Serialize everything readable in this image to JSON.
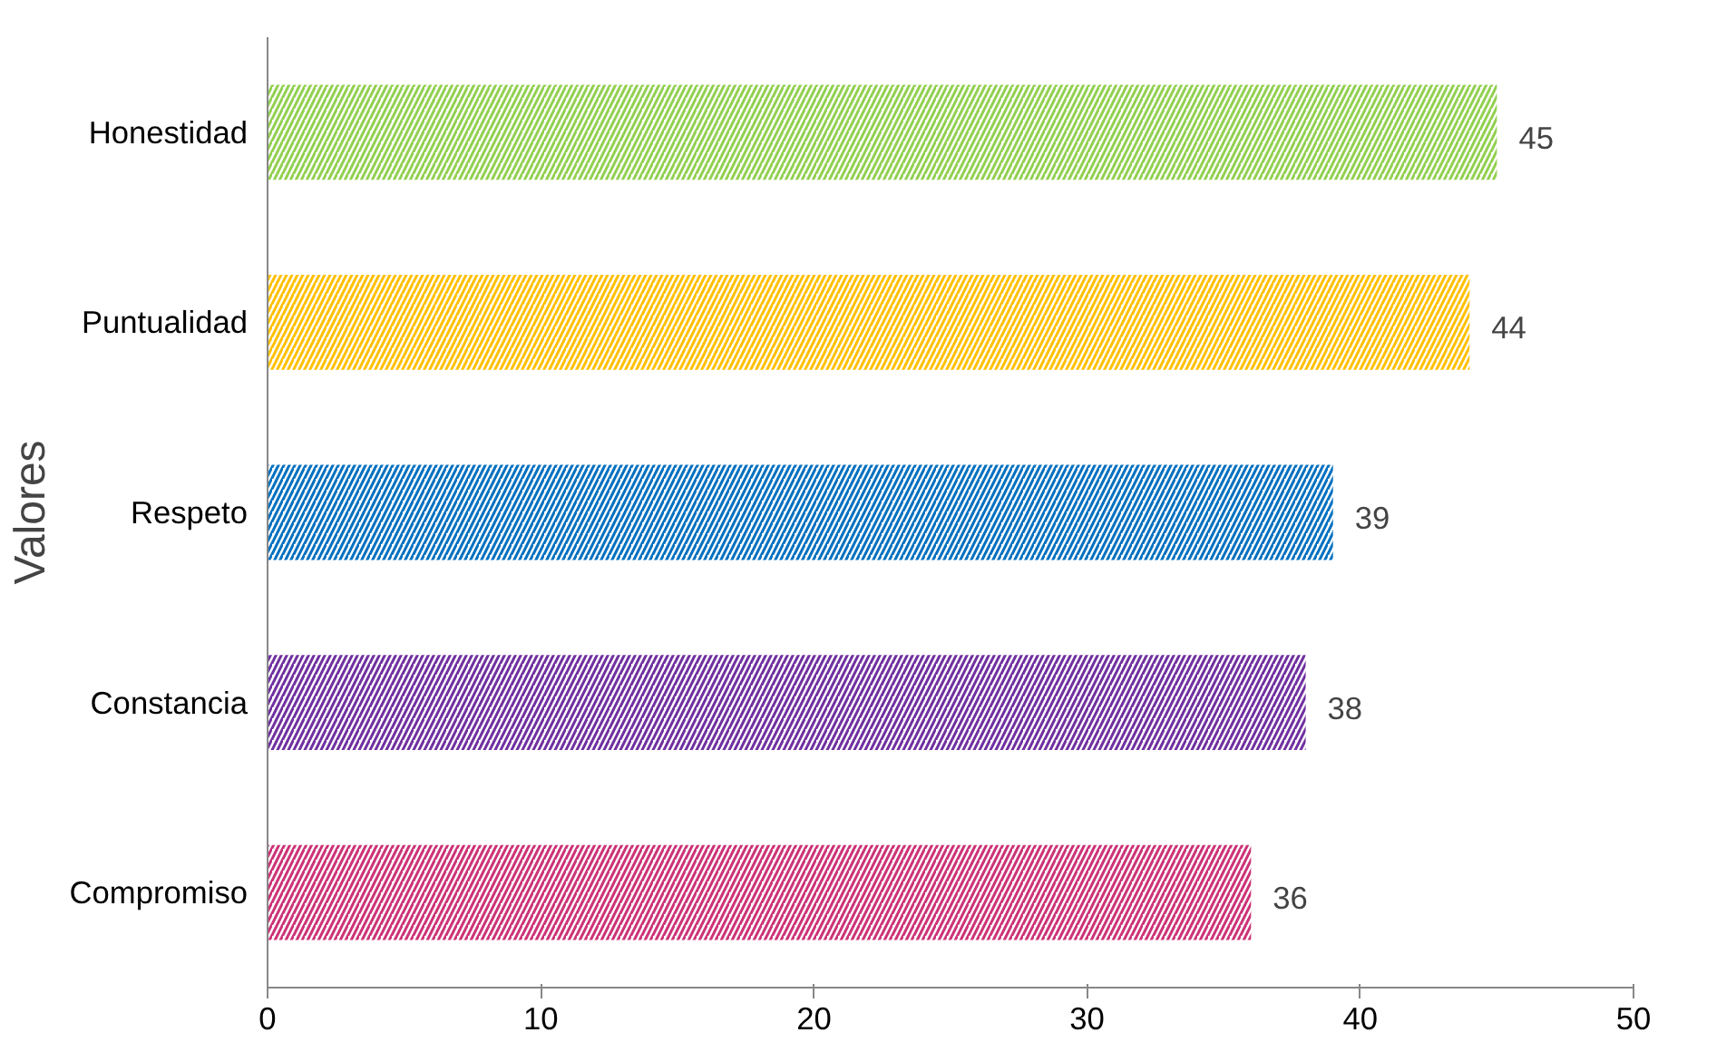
{
  "chart_data": {
    "type": "bar",
    "orientation": "horizontal",
    "ylabel": "Valores",
    "categories": [
      "Honestidad",
      "Puntualidad",
      "Respeto",
      "Constancia",
      "Compromiso"
    ],
    "values": [
      45,
      44,
      39,
      38,
      36
    ],
    "colors": [
      "#92d050",
      "#ffc000",
      "#0070c0",
      "#7030a0",
      "#cc3377"
    ],
    "xlim": [
      0,
      50
    ],
    "xticks": [
      0,
      10,
      20,
      30,
      40,
      50
    ],
    "data_labels": true,
    "grid": false
  }
}
